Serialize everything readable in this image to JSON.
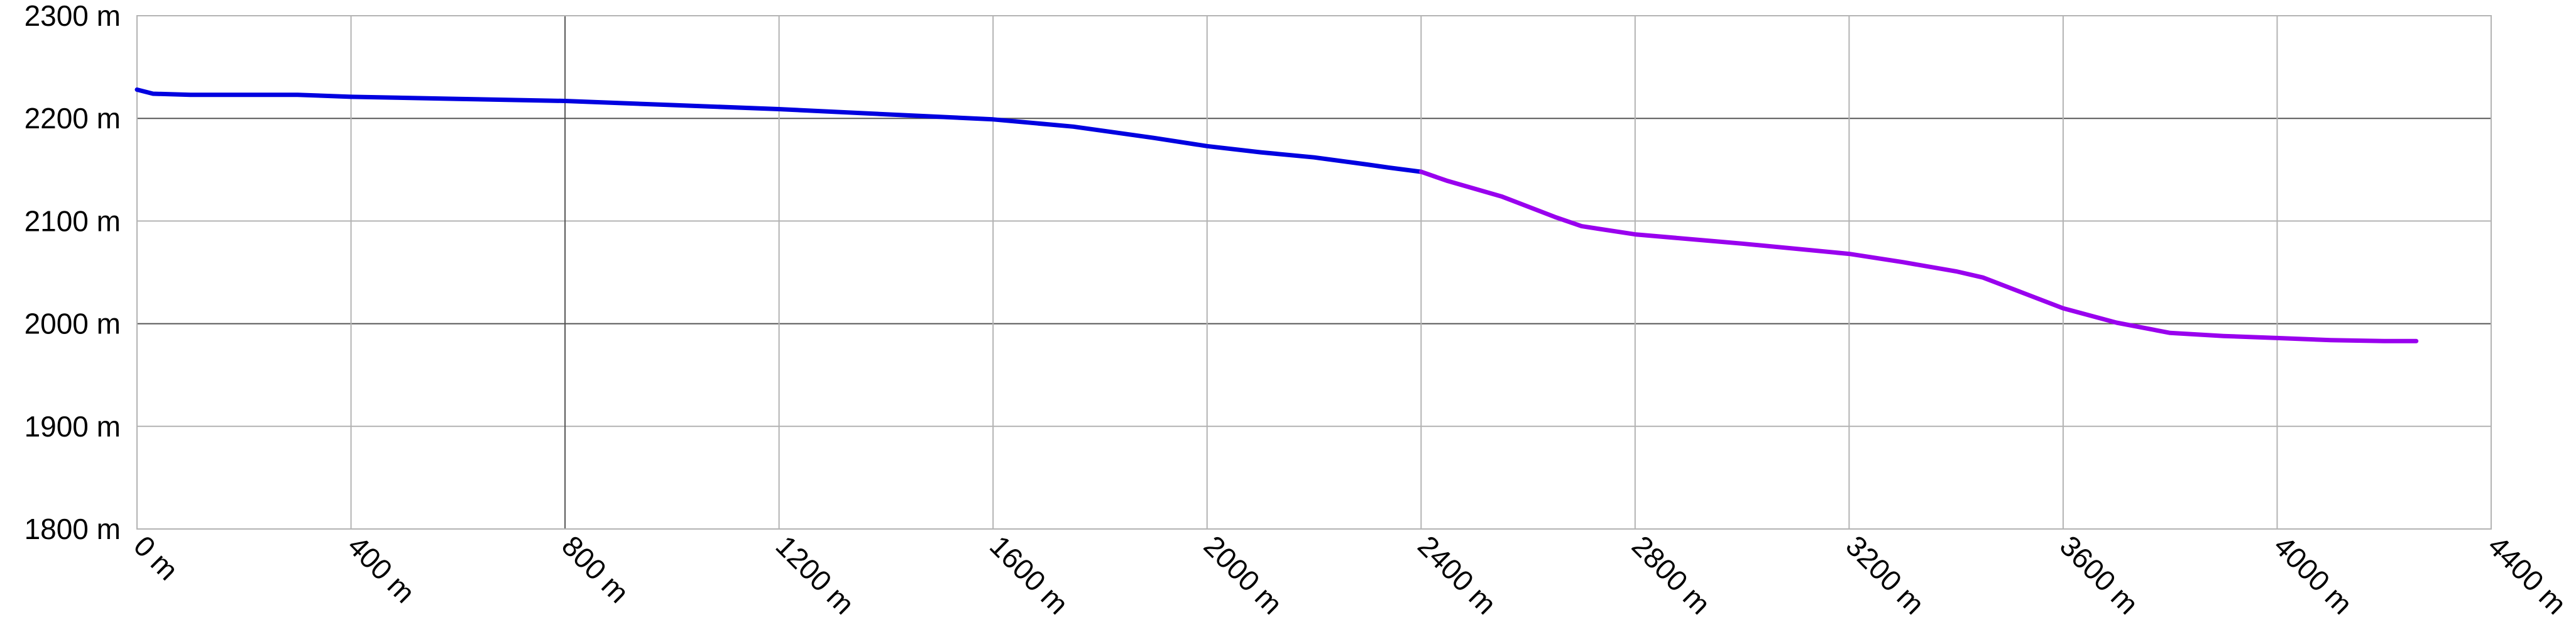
{
  "chart_data": {
    "type": "line",
    "title": "",
    "xlabel": "",
    "ylabel": "",
    "xlim": [
      0,
      4400
    ],
    "ylim": [
      1800,
      2300
    ],
    "x_ticks": [
      0,
      400,
      800,
      1200,
      1600,
      2000,
      2400,
      2800,
      3200,
      3600,
      4000,
      4400
    ],
    "y_ticks": [
      1800,
      1900,
      2000,
      2100,
      2200,
      2300
    ],
    "x_tick_labels": [
      "0 m",
      "400 m",
      "800 m",
      "1200 m",
      "1600 m",
      "2000 m",
      "2400 m",
      "2800 m",
      "3200 m",
      "3600 m",
      "4000 m",
      "4400 m"
    ],
    "y_tick_labels": [
      "1800 m",
      "1900 m",
      "2000 m",
      "2100 m",
      "2200 m",
      "2300 m"
    ],
    "grid": true,
    "legend": "none",
    "series": [
      {
        "color": "#0000e0",
        "x": [
          0,
          30,
          100,
          200,
          300,
          400,
          600,
          800,
          1000,
          1200,
          1400,
          1600,
          1750,
          1900,
          2000,
          2100,
          2200,
          2300,
          2340,
          2400
        ],
        "y": [
          2228,
          2224,
          2223,
          2223,
          2223,
          2221,
          2219,
          2217,
          2213,
          2209,
          2204,
          2199,
          2192,
          2181,
          2173,
          2167,
          2162,
          2155,
          2152,
          2148
        ]
      },
      {
        "color": "#9900ee",
        "x": [
          2400,
          2450,
          2550,
          2650,
          2700,
          2800,
          3000,
          3200,
          3300,
          3400,
          3450,
          3500,
          3600,
          3700,
          3800,
          3900,
          4000,
          4100,
          4200,
          4260
        ],
        "y": [
          2148,
          2139,
          2124,
          2104,
          2095,
          2087,
          2078,
          2068,
          2060,
          2051,
          2045,
          2035,
          2015,
          2001,
          1991,
          1988,
          1986,
          1984,
          1983,
          1983
        ]
      }
    ]
  }
}
